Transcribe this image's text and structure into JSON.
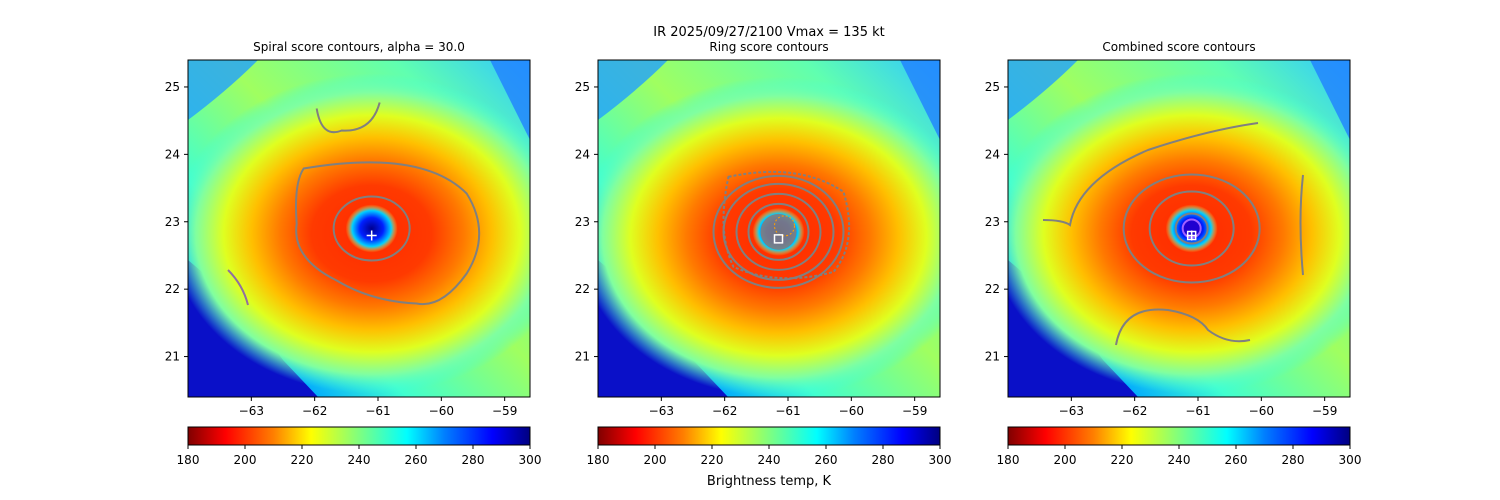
{
  "figure": {
    "suptitle": "IR  2025/09/27/2100    Vmax = 135 kt",
    "colorbar_label": "Brightness temp, K"
  },
  "colors": {
    "contour": "#808080",
    "center_marker": "#ffffff"
  },
  "chart_data": [
    {
      "type": "heatmap",
      "title": "Spiral score contours, alpha = 30.0",
      "x_ticks": [
        -63,
        -62,
        -61,
        -60,
        -59
      ],
      "y_ticks": [
        21,
        22,
        23,
        24,
        25
      ],
      "xlim": [
        -64.0,
        -58.6
      ],
      "ylim": [
        20.4,
        25.4
      ],
      "center": {
        "lon": -61.1,
        "lat": 22.9
      },
      "marker": "plus",
      "colorbar": {
        "ticks": [
          180,
          200,
          220,
          240,
          260,
          280,
          300
        ],
        "range": [
          180,
          300
        ],
        "colormap": "jet_r"
      }
    },
    {
      "type": "heatmap",
      "title": "Ring score contours",
      "x_ticks": [
        -63,
        -62,
        -61,
        -60,
        -59
      ],
      "y_ticks": [
        21,
        22,
        23,
        24,
        25
      ],
      "xlim": [
        -64.0,
        -58.6
      ],
      "ylim": [
        20.4,
        25.4
      ],
      "center": {
        "lon": -61.15,
        "lat": 22.85
      },
      "marker": "square",
      "colorbar": {
        "ticks": [
          180,
          200,
          220,
          240,
          260,
          280,
          300
        ],
        "range": [
          180,
          300
        ],
        "colormap": "jet_r"
      }
    },
    {
      "type": "heatmap",
      "title": "Combined score contours",
      "x_ticks": [
        -63,
        -62,
        -61,
        -60,
        -59
      ],
      "y_ticks": [
        21,
        22,
        23,
        24,
        25
      ],
      "xlim": [
        -64.0,
        -58.6
      ],
      "ylim": [
        20.4,
        25.4
      ],
      "center": {
        "lon": -61.1,
        "lat": 22.9
      },
      "marker": "square-plus",
      "colorbar": {
        "ticks": [
          180,
          200,
          220,
          240,
          260,
          280,
          300
        ],
        "range": [
          180,
          300
        ],
        "colormap": "jet_r"
      }
    }
  ]
}
